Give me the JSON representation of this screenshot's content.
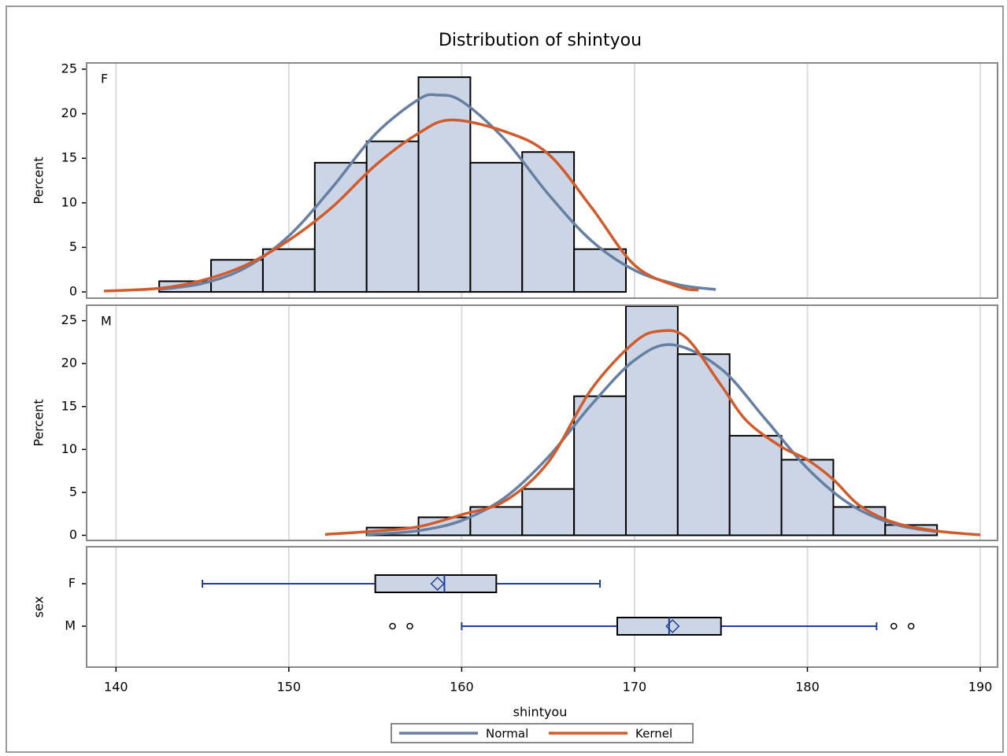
{
  "chart_data": {
    "title": "Distribution of shintyou",
    "x_label": "shintyou",
    "xlim": [
      138.3,
      191
    ],
    "xticks": [
      140,
      150,
      160,
      170,
      180,
      190
    ],
    "grid": true,
    "bar_color": "#cbd5e5",
    "curves": [
      {
        "name": "Normal",
        "color": "#667fa2"
      },
      {
        "name": "Kernel",
        "color": "#d05b2d"
      }
    ],
    "panels": [
      {
        "type": "histogram",
        "label": "F",
        "y_label": "Percent",
        "ylim": [
          -0.7,
          25.7
        ],
        "yticks": [
          0,
          5,
          10,
          15,
          20,
          25
        ],
        "bins": [
          142.5,
          145.5,
          148.5,
          151.5,
          154.5,
          157.5,
          160.5,
          163.5,
          166.5,
          169.5
        ],
        "values": [
          1.2,
          3.6,
          4.8,
          14.5,
          16.9,
          24.1,
          14.5,
          15.7,
          4.8
        ],
        "curves": [
          {
            "x": [
              142.5,
              145,
              147.5,
              150,
              152.5,
              155,
              157.5,
              158.6,
              160,
              162.5,
              165,
              167.5,
              170,
              172.5,
              174.7
            ],
            "values": [
              0.27,
              0.95,
              2.72,
              6.28,
              11.7,
              17.7,
              21.6,
              22.1,
              21.4,
              17.1,
              11.0,
              5.75,
              2.43,
              0.83,
              0.27
            ]
          },
          {
            "x": [
              139.3,
              142.5,
              145,
              147.5,
              150,
              152.5,
              155,
              157.5,
              159.4,
              162.5,
              165,
              167.5,
              170,
              172.5,
              173.7
            ],
            "values": [
              0.1,
              0.4,
              1.3,
              3.0,
              5.8,
              9.5,
              14.2,
              17.8,
              19.3,
              18.0,
              15.5,
              9.5,
              3.0,
              0.6,
              0.2
            ]
          }
        ]
      },
      {
        "type": "histogram",
        "label": "M",
        "y_label": "Percent",
        "ylim": [
          -0.6,
          26.8
        ],
        "yticks": [
          0,
          5,
          10,
          15,
          20,
          25
        ],
        "bins": [
          154.5,
          157.5,
          160.5,
          163.5,
          166.5,
          169.5,
          172.5,
          175.5,
          178.5,
          181.5,
          184.5,
          187.5
        ],
        "values": [
          0.9,
          2.1,
          3.3,
          5.4,
          16.2,
          26.7,
          21.1,
          11.6,
          8.8,
          3.3,
          1.2
        ],
        "curves": [
          {
            "x": [
              154.5,
              155,
              157.5,
              160,
              162.5,
              165,
              167.5,
              170,
              172.2,
              175,
              177.5,
              180,
              182.5,
              185,
              187.5
            ],
            "values": [
              0.1,
              0.14,
              0.54,
              1.72,
              4.4,
              9.1,
              15.2,
              20.4,
              22.2,
              19.4,
              13.7,
              7.8,
              3.57,
              1.32,
              0.4
            ]
          },
          {
            "x": [
              152.1,
              155,
              157.5,
              160,
              162.5,
              165,
              167.5,
              170,
              171.5,
              173,
              175,
              176.5,
              178.5,
              180,
              181.5,
              183,
              185,
              187.5,
              190
            ],
            "values": [
              0.1,
              0.5,
              1.0,
              2.4,
              4.0,
              8.5,
              17.0,
              22.5,
              23.8,
              23.0,
              17.5,
              13.3,
              10.3,
              8.8,
              6.5,
              3.5,
              1.5,
              0.5,
              0.05
            ]
          }
        ]
      }
    ],
    "box": {
      "type": "box",
      "y_label": "sex",
      "categories": [
        "F",
        "M"
      ],
      "color": "#1f3f99",
      "min": [
        145,
        160
      ],
      "q1": [
        155,
        169
      ],
      "median": [
        159,
        172
      ],
      "q3": [
        162,
        175
      ],
      "max": [
        168,
        184
      ],
      "mean": [
        158.6,
        172.2
      ],
      "outliers": [
        [],
        [
          156,
          157,
          185,
          186
        ]
      ]
    }
  }
}
